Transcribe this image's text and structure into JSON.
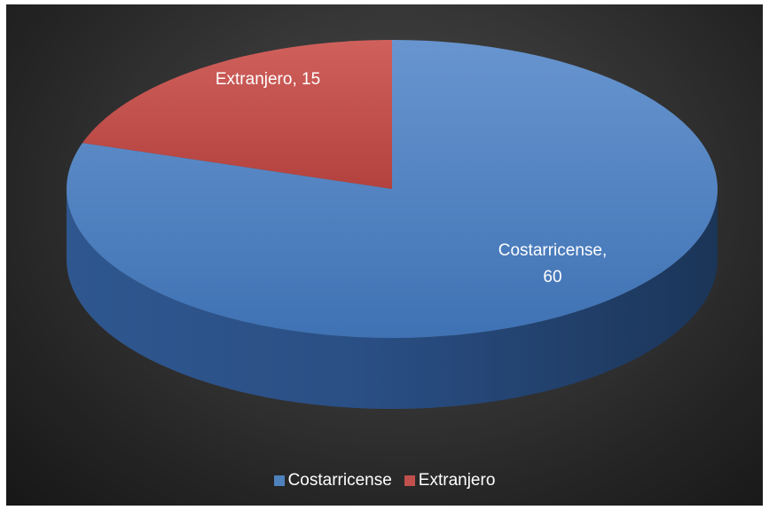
{
  "chart_data": {
    "type": "pie",
    "style": "3d",
    "categories": [
      "Costarricense",
      "Extranjero"
    ],
    "values": [
      60,
      15
    ],
    "colors": [
      "#4f81bd",
      "#c0504d"
    ],
    "data_labels": [
      {
        "line1": "Costarricense,",
        "line2": "60"
      },
      {
        "line1": "Extranjero, 15",
        "line2": ""
      }
    ],
    "legend": {
      "position": "bottom",
      "items": [
        {
          "label": "Costarricense",
          "color": "#4f81bd"
        },
        {
          "label": "Extranjero",
          "color": "#c0504d"
        }
      ]
    }
  }
}
